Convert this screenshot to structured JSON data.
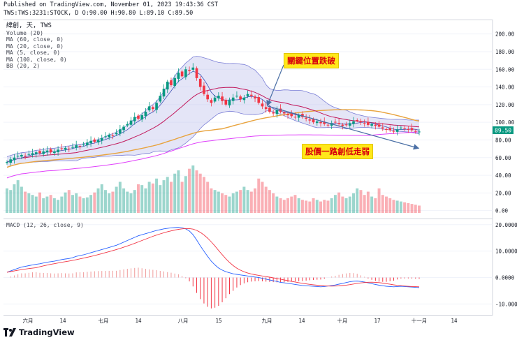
{
  "header": {
    "published": "Published on TradingView.com, November 01, 2023 19:43:36 CST",
    "symbol_line": "TWS:TWS:3231:STOCK, D O:90.00 H:90.80 L:89.10 C:89.50"
  },
  "legend": {
    "title": "緯創, 天, TWS",
    "items": [
      "Volume (20)",
      "MA (60, close, 0)",
      "MA (20, close, 0)",
      "MA (5, close, 0)",
      "MA (100, close, 0)",
      "BB (20, 2)"
    ]
  },
  "macd_legend": "MACD (12, 26, close, 9)",
  "annotations": {
    "breakdown": "關鍵位置跌破",
    "weak": "股價一路創低走弱"
  },
  "price_axis": {
    "ticks": [
      "200.00",
      "180.00",
      "160.00",
      "140.00",
      "120.00",
      "100.00",
      "80.00",
      "60.00",
      "40.00",
      "20.00",
      "0.00"
    ],
    "last_price": "89.50",
    "last_price_color": "#089981"
  },
  "macd_axis": {
    "ticks": [
      "20.0000",
      "10.0000",
      "0.0000",
      "-10.0000"
    ]
  },
  "time_axis": {
    "labels": [
      "六月",
      "14",
      "七月",
      "14",
      "八月",
      "15",
      "九月",
      "14",
      "十月",
      "17",
      "十一月",
      "14"
    ]
  },
  "colors": {
    "up": "#089981",
    "down": "#f23645",
    "bb_fill": "#b2b5e8",
    "ma60": "#e8a33d",
    "ma20": "#c2185b",
    "ma100": "#e040fb",
    "ma5": "#3f51b5",
    "macd_line": "#2962ff",
    "signal_line": "#f23645"
  },
  "footer": {
    "brand": "TradingView"
  },
  "chart_data": {
    "type": "candlestick",
    "title": "緯創 (TWS:3231) Daily",
    "ylim": [
      -5,
      210
    ],
    "last_close": 89.5,
    "closes": [
      55,
      58,
      60,
      62,
      63,
      62,
      64,
      65,
      66,
      65,
      67,
      68,
      66,
      67,
      69,
      70,
      71,
      70,
      72,
      74,
      73,
      75,
      77,
      79,
      78,
      80,
      82,
      84,
      86,
      85,
      88,
      92,
      95,
      98,
      102,
      106,
      104,
      108,
      112,
      118,
      115,
      122,
      130,
      138,
      146,
      142,
      150,
      156,
      152,
      160,
      158,
      162,
      150,
      140,
      132,
      126,
      122,
      128,
      130,
      124,
      120,
      125,
      128,
      130,
      126,
      128,
      132,
      130,
      127,
      122,
      118,
      115,
      112,
      110,
      114,
      112,
      110,
      108,
      107,
      106,
      108,
      106,
      104,
      102,
      100,
      101,
      99,
      98,
      97,
      99,
      100,
      98,
      96,
      97,
      99,
      101,
      102,
      100,
      99,
      97,
      98,
      96,
      95,
      93,
      92,
      91,
      90,
      92,
      94,
      93,
      92,
      91,
      90,
      89.5
    ],
    "volumes": [
      30,
      28,
      35,
      40,
      32,
      26,
      24,
      22,
      20,
      25,
      18,
      20,
      22,
      18,
      16,
      20,
      25,
      28,
      22,
      24,
      20,
      18,
      19,
      22,
      25,
      30,
      35,
      28,
      24,
      26,
      32,
      38,
      30,
      26,
      24,
      28,
      35,
      34,
      30,
      38,
      36,
      42,
      34,
      40,
      44,
      38,
      48,
      52,
      38,
      45,
      54,
      58,
      52,
      48,
      44,
      38,
      30,
      28,
      26,
      24,
      22,
      20,
      24,
      26,
      28,
      32,
      28,
      26,
      30,
      42,
      38,
      32,
      28,
      24,
      20,
      18,
      16,
      18,
      20,
      22,
      18,
      16,
      15,
      14,
      18,
      16,
      14,
      16,
      15,
      18,
      22,
      25,
      20,
      18,
      20,
      24,
      30,
      28,
      22,
      26,
      20,
      18,
      30,
      22,
      20,
      18,
      16,
      15,
      14,
      13,
      12,
      11,
      10,
      9
    ],
    "macd": [
      2,
      2.5,
      3,
      3.5,
      4,
      4.2,
      4.5,
      4.8,
      5,
      5.2,
      5.5,
      5.8,
      6,
      6.2,
      6.5,
      6.8,
      7,
      7.2,
      7.5,
      8,
      8.3,
      8.6,
      9,
      9.4,
      9.8,
      10.2,
      10.6,
      11,
      11.4,
      11.8,
      12.2,
      12.8,
      13.4,
      14,
      14.6,
      15.2,
      15.8,
      16.2,
      16.6,
      17,
      17.4,
      17.8,
      18.1,
      18.4,
      18.6,
      18.8,
      18.9,
      19,
      18.8,
      18.4,
      17.6,
      16.2,
      14.2,
      12,
      10,
      8,
      6.2,
      4.8,
      3.6,
      2.8,
      2.2,
      1.8,
      1.4,
      1.2,
      1,
      0.8,
      0.6,
      0.4,
      0.2,
      0,
      -0.3,
      -0.6,
      -0.9,
      -1.2,
      -1.5,
      -1.8,
      -2,
      -2.2,
      -2.4,
      -2.6,
      -2.8,
      -3,
      -3.1,
      -3.2,
      -3.3,
      -3.4,
      -3.5,
      -3.4,
      -3.2,
      -3,
      -2.8,
      -2.5,
      -2.2,
      -1.9,
      -1.6,
      -1.4,
      -1.3,
      -1.5,
      -1.7,
      -2,
      -2.3,
      -2.6,
      -2.9,
      -3.1,
      -3.3,
      -3.4,
      -3.5,
      -3.4,
      -3.3,
      -3.4,
      -3.5,
      -3.6,
      -3.7,
      -3.8
    ],
    "macd_range": [
      -12,
      21
    ],
    "price_axis_ticks": [
      200,
      180,
      160,
      140,
      120,
      100,
      80,
      60,
      40,
      20,
      0
    ]
  }
}
